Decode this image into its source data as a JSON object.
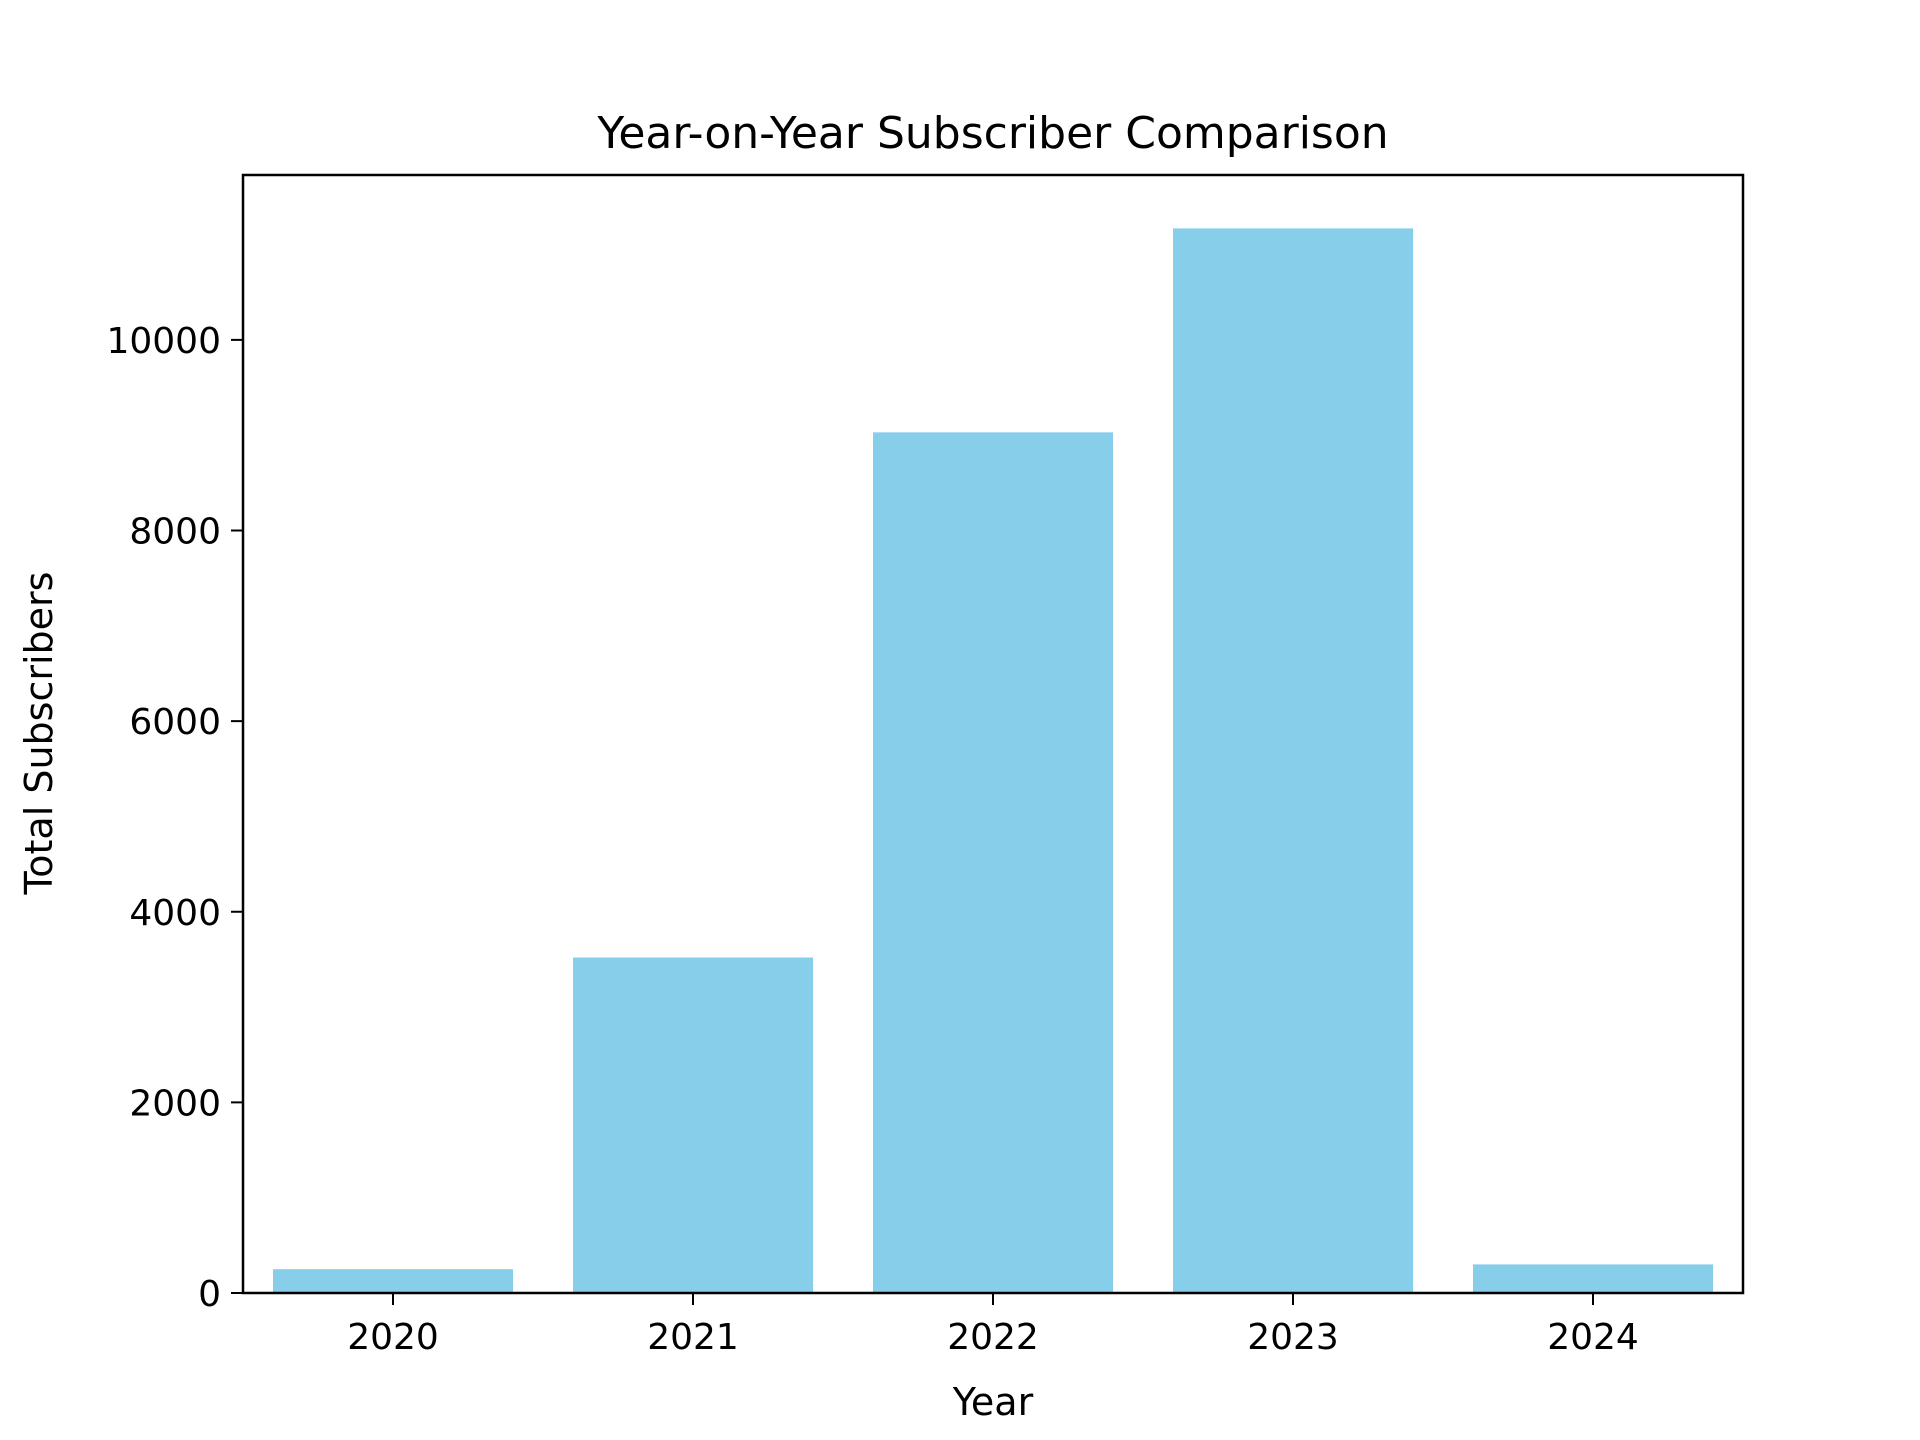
{
  "chart_data": {
    "type": "bar",
    "title": "Year-on-Year Subscriber Comparison",
    "xlabel": "Year",
    "ylabel": "Total Subscribers",
    "categories": [
      "2020",
      "2021",
      "2022",
      "2023",
      "2024"
    ],
    "values": [
      250,
      3520,
      9030,
      11170,
      300
    ],
    "ylim": [
      0,
      11730
    ],
    "yticks": [
      0,
      2000,
      4000,
      6000,
      8000,
      10000
    ],
    "ytick_labels": [
      "0",
      "2000",
      "4000",
      "6000",
      "8000",
      "10000"
    ],
    "bar_color": "#87ceeb",
    "grid": false,
    "legend": "none"
  }
}
